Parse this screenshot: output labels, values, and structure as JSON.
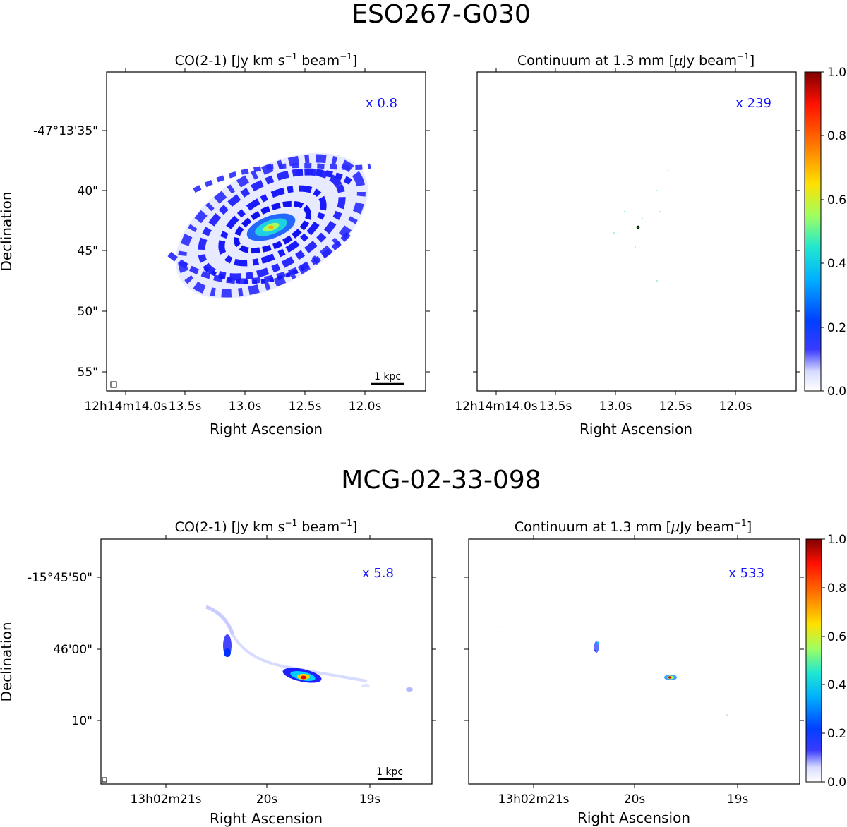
{
  "chart_data": [
    {
      "type": "heatmap",
      "galaxy": "ESO267-G030",
      "panels": [
        {
          "title_main": "CO(2-1) [Jy km s",
          "title_sup1": "−1",
          "title_mid": " beam",
          "title_sup2": "−1",
          "title_end": "]",
          "scale_label": "x 0.8",
          "scalebar": "1 kpc",
          "xlabel": "Right Ascension",
          "ylabel": "Declination",
          "yticks": [
            "-47°13'35\"",
            "40\"",
            "45\"",
            "50\"",
            "55\""
          ],
          "xticks": [
            "12h14m14.0s",
            "13.5s",
            "13.0s",
            "12.5s",
            "12.0s"
          ]
        },
        {
          "title_main": "Continuum at 1.3 mm [",
          "title_mu": "μ",
          "title_mid": "Jy beam",
          "title_sup": "−1",
          "title_end": "]",
          "scale_label": "x 239",
          "xlabel": "Right Ascension",
          "xticks": [
            "12h14m14.0s",
            "13.5s",
            "13.0s",
            "12.5s",
            "12.0s"
          ],
          "colorbar_ticks": [
            "1.0",
            "0.8",
            "0.6",
            "0.4",
            "0.2",
            "0.0"
          ]
        }
      ]
    },
    {
      "type": "heatmap",
      "galaxy": "MCG-02-33-098",
      "panels": [
        {
          "title_main": "CO(2-1) [Jy km s",
          "title_sup1": "−1",
          "title_mid": " beam",
          "title_sup2": "−1",
          "title_end": "]",
          "scale_label": "x 5.8",
          "scalebar": "1 kpc",
          "xlabel": "Right Ascension",
          "ylabel": "Declination",
          "yticks": [
            "-15°45'50\"",
            "46'00\"",
            "10\""
          ],
          "xticks": [
            "13h02m21s",
            "20s",
            "19s"
          ]
        },
        {
          "title_main": "Continuum at 1.3 mm [",
          "title_mu": "μ",
          "title_mid": "Jy beam",
          "title_sup": "−1",
          "title_end": "]",
          "scale_label": "x 533",
          "xlabel": "Right Ascension",
          "xticks": [
            "13h02m21s",
            "20s",
            "19s"
          ],
          "colorbar_ticks": [
            "1.0",
            "0.8",
            "0.6",
            "0.4",
            "0.2",
            "0.0"
          ]
        }
      ]
    }
  ]
}
